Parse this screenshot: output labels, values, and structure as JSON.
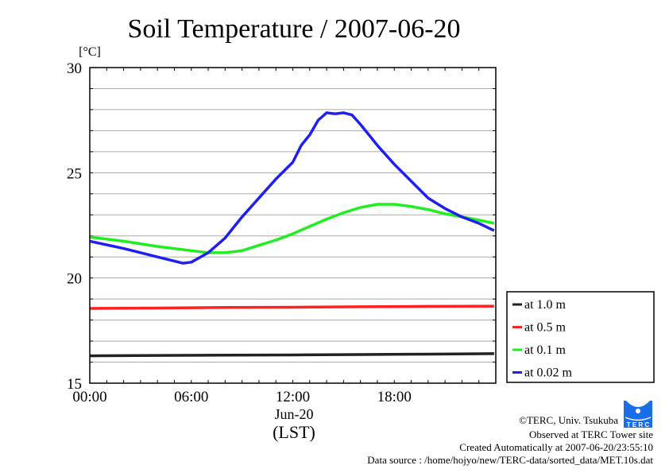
{
  "chart_data": {
    "type": "line",
    "title": "Soil Temperature / 2007-06-20",
    "ylabel": "[°C]",
    "xlabel": "(LST)",
    "date_label": "Jun-20",
    "ylim": [
      15,
      30
    ],
    "xlim": [
      0,
      24
    ],
    "yticks": [
      {
        "v": 15,
        "label": "15"
      },
      {
        "v": 20,
        "label": "20"
      },
      {
        "v": 25,
        "label": "25"
      },
      {
        "v": 30,
        "label": "30"
      }
    ],
    "xticks": [
      {
        "v": 0,
        "label": "00:00"
      },
      {
        "v": 6,
        "label": "06:00"
      },
      {
        "v": 12,
        "label": "12:00"
      },
      {
        "v": 18,
        "label": "18:00"
      }
    ],
    "grid": true,
    "legend_position": "right",
    "series": [
      {
        "name": "at 1.0 m",
        "color": "#222222",
        "x": [
          0,
          4,
          8,
          12,
          16,
          20,
          23.9
        ],
        "y": [
          16.3,
          16.32,
          16.33,
          16.34,
          16.36,
          16.38,
          16.4
        ]
      },
      {
        "name": "at 0.5 m",
        "color": "#ff2020",
        "x": [
          0,
          4,
          8,
          12,
          16,
          20,
          23.9
        ],
        "y": [
          18.55,
          18.57,
          18.6,
          18.61,
          18.63,
          18.65,
          18.66
        ]
      },
      {
        "name": "at 0.1 m",
        "color": "#20ee20",
        "x": [
          0,
          2,
          4,
          6,
          7,
          8,
          9,
          10,
          11,
          12,
          13,
          14,
          15,
          16,
          17,
          18,
          19,
          20,
          21,
          22,
          23,
          23.9
        ],
        "y": [
          21.95,
          21.75,
          21.5,
          21.3,
          21.2,
          21.2,
          21.3,
          21.55,
          21.8,
          22.1,
          22.45,
          22.8,
          23.1,
          23.35,
          23.5,
          23.5,
          23.4,
          23.25,
          23.05,
          22.9,
          22.75,
          22.6
        ]
      },
      {
        "name": "at 0.02 m",
        "color": "#2020ee",
        "x": [
          0,
          2,
          4,
          5.5,
          6,
          7,
          8,
          9,
          10,
          11,
          12,
          12.5,
          13,
          13.5,
          14,
          14.5,
          15,
          15.5,
          16,
          17,
          18,
          19,
          20,
          21,
          22,
          23,
          23.9
        ],
        "y": [
          21.75,
          21.4,
          21.0,
          20.7,
          20.75,
          21.2,
          21.9,
          22.9,
          23.8,
          24.7,
          25.5,
          26.3,
          26.8,
          27.5,
          27.85,
          27.8,
          27.85,
          27.75,
          27.3,
          26.3,
          25.4,
          24.6,
          23.8,
          23.3,
          22.9,
          22.6,
          22.25
        ]
      }
    ]
  },
  "credits": {
    "copyright": "©TERC, Univ. Tsukuba",
    "site": "Observed at TERC Tower site",
    "created": "Created Automatically at 2007-06-20/23:55:10",
    "source": "Data source : /home/hojyo/new/TERC-data/sorted_data/MET.10s.dat",
    "logo_text": "TERC"
  }
}
